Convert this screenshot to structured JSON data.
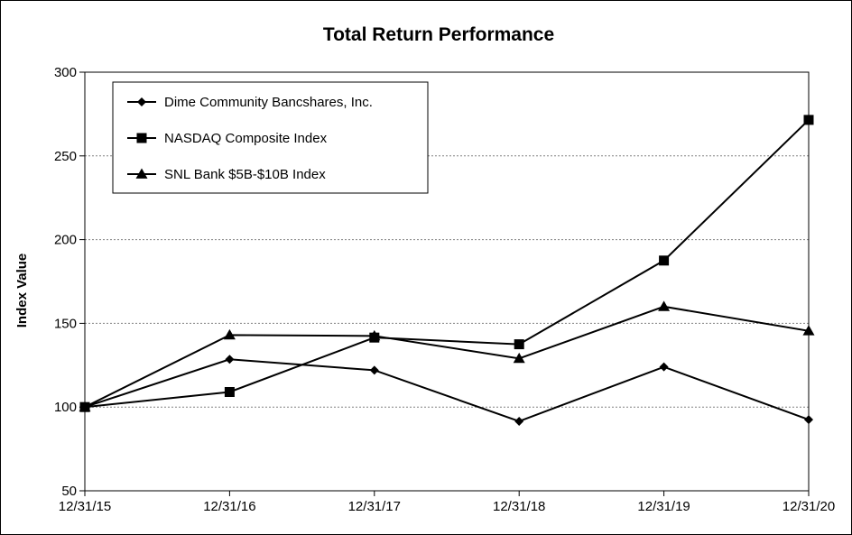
{
  "chart_data": {
    "type": "line",
    "title": "Total Return Performance",
    "xlabel": "",
    "ylabel": "Index Value",
    "categories": [
      "12/31/15",
      "12/31/16",
      "12/31/17",
      "12/31/18",
      "12/31/19",
      "12/31/20"
    ],
    "ylim": [
      50,
      300
    ],
    "yticks": [
      50,
      100,
      150,
      200,
      250,
      300
    ],
    "grid": true,
    "legend_position": "top-left",
    "series": [
      {
        "name": "Dime Community Bancshares, Inc.",
        "marker": "diamond",
        "values": [
          100,
          128.5,
          122,
          91.5,
          124,
          92.5
        ]
      },
      {
        "name": "NASDAQ Composite Index",
        "marker": "square",
        "values": [
          100,
          109,
          141.5,
          137.5,
          187.5,
          271.5
        ]
      },
      {
        "name": "SNL Bank $5B-$10B Index",
        "marker": "triangle",
        "values": [
          100,
          143,
          142.5,
          129,
          160,
          145.5
        ]
      }
    ],
    "colors": {
      "line": "#000000",
      "grid": "#808080"
    }
  }
}
